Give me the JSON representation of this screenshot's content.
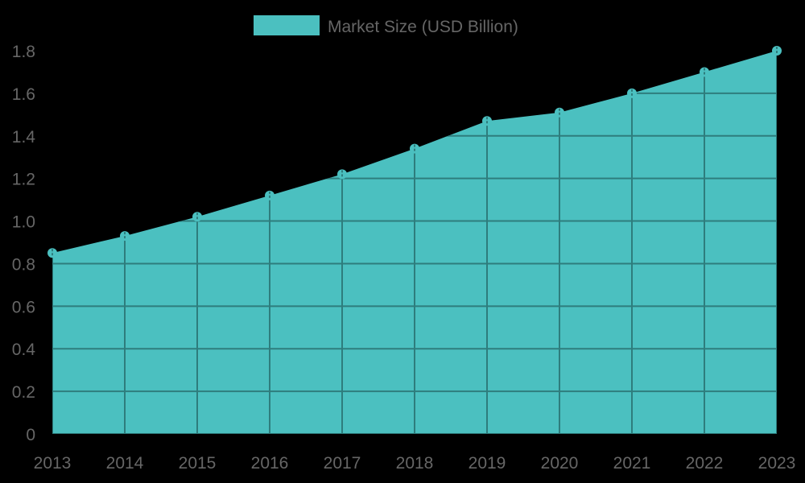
{
  "chart_data": {
    "type": "area",
    "title": "",
    "xlabel": "",
    "ylabel": "",
    "categories": [
      "2013",
      "2014",
      "2015",
      "2016",
      "2017",
      "2018",
      "2019",
      "2020",
      "2021",
      "2022",
      "2023"
    ],
    "series": [
      {
        "name": "Market Size (USD Billion)",
        "values": [
          0.85,
          0.93,
          1.02,
          1.12,
          1.22,
          1.34,
          1.47,
          1.51,
          1.6,
          1.7,
          1.8
        ],
        "color": "#4BC0C0"
      }
    ],
    "yticks": [
      "0",
      "0.2",
      "0.4",
      "0.6",
      "0.8",
      "1.0",
      "1.2",
      "1.4",
      "1.6",
      "1.8"
    ],
    "ylim": [
      0,
      1.8
    ],
    "grid": true,
    "legend_position": "top"
  },
  "legend": {
    "label": "Market Size (USD Billion)",
    "color": "#4BC0C0"
  },
  "colors": {
    "background": "#000000",
    "fill": "#4BC0C0",
    "grid": "#2E7D7D",
    "text": "#666666"
  }
}
